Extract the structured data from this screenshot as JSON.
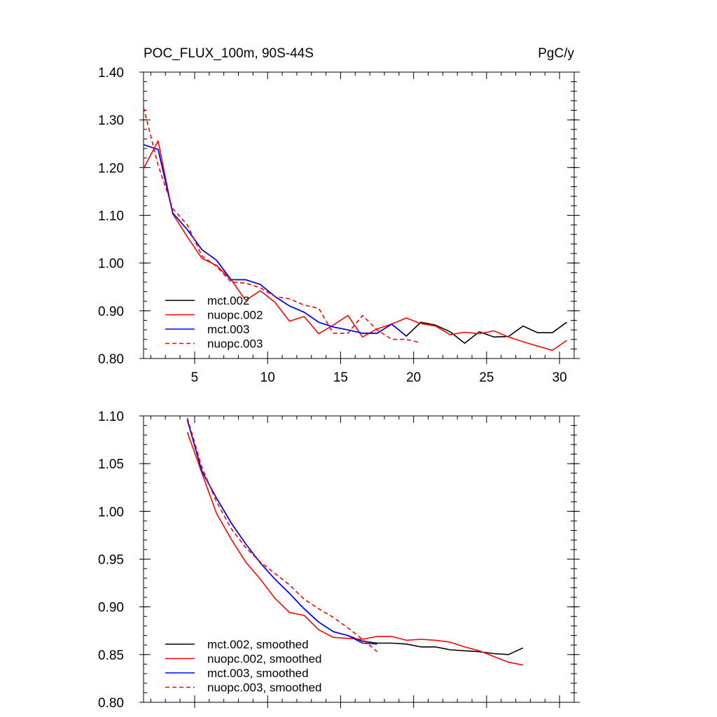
{
  "chart_data": [
    {
      "type": "line",
      "title": "POC_FLUX_100m, 90S-44S",
      "units": "PgC/y",
      "xlim": [
        1.5,
        31
      ],
      "ylim": [
        0.8,
        1.4
      ],
      "xticks": [
        5,
        10,
        15,
        20,
        25,
        30
      ],
      "xtick_labels": [
        "5",
        "10",
        "15",
        "20",
        "25",
        "30"
      ],
      "yticks": [
        0.8,
        0.9,
        1.0,
        1.1,
        1.2,
        1.3,
        1.4
      ],
      "ytick_labels": [
        "0.80",
        "0.90",
        "1.00",
        "1.10",
        "1.20",
        "1.30",
        "1.40"
      ],
      "legend_position": "bottom-left",
      "series": [
        {
          "name": "mct.002",
          "color": "#000000",
          "dash": "solid",
          "x": [
            1.5,
            2.5,
            3.5,
            4.5,
            5.5,
            6.5,
            7.5,
            8.5,
            9.5,
            10.5,
            11.5,
            12.5,
            13.5,
            14.5,
            15.5,
            16.5,
            17.5,
            18.5,
            19.5,
            20.5,
            21.5,
            22.5,
            23.5,
            24.5,
            25.5,
            26.5,
            27.5,
            28.5,
            29.5,
            30.5
          ],
          "y": [
            1.248,
            1.238,
            1.105,
            1.07,
            1.028,
            1.006,
            0.965,
            0.965,
            0.955,
            0.93,
            0.91,
            0.897,
            0.876,
            0.866,
            0.86,
            0.853,
            0.853,
            0.872,
            0.847,
            0.876,
            0.87,
            0.856,
            0.832,
            0.856,
            0.845,
            0.846,
            0.868,
            0.854,
            0.854,
            0.876
          ]
        },
        {
          "name": "nuopc.002",
          "color": "#ff0000",
          "dash": "solid",
          "x": [
            1.5,
            2.5,
            3.5,
            4.5,
            5.5,
            6.5,
            7.5,
            8.5,
            9.5,
            10.5,
            11.5,
            12.5,
            13.5,
            14.5,
            15.5,
            16.5,
            17.5,
            18.5,
            19.5,
            20.5,
            21.5,
            22.5,
            23.5,
            24.5,
            25.5,
            26.5,
            27.5,
            28.5,
            29.5,
            30.5
          ],
          "y": [
            1.198,
            1.256,
            1.103,
            1.055,
            1.01,
            0.995,
            0.965,
            0.922,
            0.942,
            0.918,
            0.878,
            0.888,
            0.852,
            0.87,
            0.89,
            0.845,
            0.862,
            0.872,
            0.885,
            0.873,
            0.868,
            0.85,
            0.855,
            0.852,
            0.858,
            0.845,
            0.835,
            0.826,
            0.817,
            0.838
          ]
        },
        {
          "name": "mct.003",
          "color": "#0000ff",
          "dash": "solid",
          "x": [
            1.5,
            2.5,
            3.5,
            4.5,
            5.5,
            6.5,
            7.5,
            8.5,
            9.5,
            10.5,
            11.5,
            12.5,
            13.5,
            14.5,
            15.5,
            16.5,
            17.5,
            18.5,
            19.5
          ],
          "y": [
            1.248,
            1.238,
            1.105,
            1.07,
            1.028,
            1.006,
            0.965,
            0.965,
            0.955,
            0.93,
            0.91,
            0.897,
            0.876,
            0.866,
            0.86,
            0.853,
            0.853,
            0.872,
            0.847
          ]
        },
        {
          "name": "nuopc.003",
          "color": "#ff0000",
          "dash": "dashed",
          "x": [
            1.5,
            2.5,
            3.5,
            4.5,
            5.5,
            6.5,
            7.5,
            8.5,
            9.5,
            10.5,
            11.5,
            12.5,
            13.5,
            14.5,
            15.5,
            16.5,
            17.5,
            18.5,
            19.5,
            20.5
          ],
          "y": [
            1.326,
            1.205,
            1.114,
            1.08,
            1.015,
            0.993,
            0.96,
            0.958,
            0.948,
            0.93,
            0.925,
            0.912,
            0.905,
            0.853,
            0.853,
            0.89,
            0.86,
            0.84,
            0.84,
            0.833
          ]
        }
      ]
    },
    {
      "type": "line",
      "title": "",
      "xlim": [
        1.5,
        31
      ],
      "ylim": [
        0.8,
        1.1
      ],
      "xticks": [
        5,
        10,
        15,
        20,
        25,
        30
      ],
      "xtick_labels": [],
      "yticks": [
        0.8,
        0.85,
        0.9,
        0.95,
        1.0,
        1.05,
        1.1
      ],
      "ytick_labels": [
        "0.80",
        "0.85",
        "0.90",
        "0.95",
        "1.00",
        "1.05",
        "1.10"
      ],
      "legend_position": "bottom-left",
      "series": [
        {
          "name": "mct.002, smoothed",
          "color": "#000000",
          "dash": "solid",
          "x": [
            4.5,
            5.5,
            6.5,
            7.5,
            8.5,
            9.5,
            10.5,
            11.5,
            12.5,
            13.5,
            14.5,
            15.5,
            16.5,
            17.5,
            18.5,
            19.5,
            20.5,
            21.5,
            22.5,
            23.5,
            24.5,
            25.5,
            26.5,
            27.5
          ],
          "y": [
            1.096,
            1.042,
            1.014,
            0.988,
            0.966,
            0.946,
            0.929,
            0.914,
            0.898,
            0.884,
            0.874,
            0.87,
            0.864,
            0.862,
            0.862,
            0.861,
            0.858,
            0.858,
            0.855,
            0.854,
            0.853,
            0.851,
            0.85,
            0.857
          ]
        },
        {
          "name": "nuopc.002, smoothed",
          "color": "#ff0000",
          "dash": "solid",
          "x": [
            4.5,
            5.5,
            6.5,
            7.5,
            8.5,
            9.5,
            10.5,
            11.5,
            12.5,
            13.5,
            14.5,
            15.5,
            16.5,
            17.5,
            18.5,
            19.5,
            20.5,
            21.5,
            22.5,
            23.5,
            24.5,
            25.5,
            26.5,
            27.5
          ],
          "y": [
            1.083,
            1.04,
            0.998,
            0.971,
            0.947,
            0.929,
            0.909,
            0.894,
            0.891,
            0.876,
            0.868,
            0.867,
            0.866,
            0.869,
            0.869,
            0.865,
            0.866,
            0.865,
            0.863,
            0.858,
            0.854,
            0.848,
            0.842,
            0.839
          ]
        },
        {
          "name": "mct.003, smoothed",
          "color": "#0000ff",
          "dash": "solid",
          "x": [
            4.5,
            5.5,
            6.5,
            7.5,
            8.5,
            9.5,
            10.5,
            11.5,
            12.5,
            13.5,
            14.5,
            15.5,
            16.5,
            17.5
          ],
          "y": [
            1.096,
            1.042,
            1.014,
            0.988,
            0.966,
            0.946,
            0.929,
            0.914,
            0.898,
            0.884,
            0.874,
            0.87,
            0.862,
            0.861
          ]
        },
        {
          "name": "nuopc.003, smoothed",
          "color": "#ff0000",
          "dash": "dashed",
          "x": [
            4.5,
            5.5,
            6.5,
            7.5,
            8.5,
            9.5,
            10.5,
            11.5,
            12.5,
            13.5,
            14.5,
            15.5,
            16.5,
            17.5
          ],
          "y": [
            1.098,
            1.046,
            1.01,
            0.982,
            0.962,
            0.947,
            0.935,
            0.923,
            0.908,
            0.898,
            0.889,
            0.878,
            0.866,
            0.853
          ]
        }
      ]
    }
  ]
}
